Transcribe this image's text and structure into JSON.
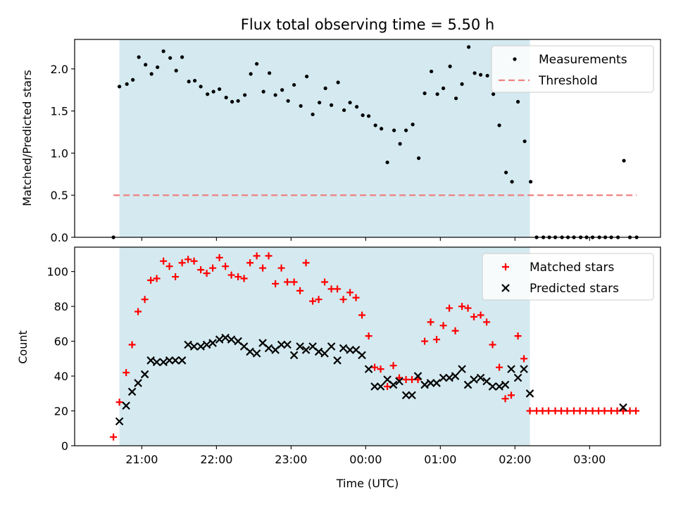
{
  "chart_data": [
    {
      "type": "scatter",
      "title": "Flux total observing time = 5.50 h",
      "xlabel": "",
      "ylabel": "Matched/Predicted stars",
      "ylim": [
        0,
        2.35
      ],
      "x_unit": "hours of time (UTC), values >= 24 are after midnight",
      "xlim": [
        20.1,
        27.95
      ],
      "xticks": [
        {
          "value": 21,
          "label": ""
        },
        {
          "value": 22,
          "label": ""
        },
        {
          "value": 23,
          "label": ""
        },
        {
          "value": 24,
          "label": ""
        },
        {
          "value": 25,
          "label": ""
        },
        {
          "value": 26,
          "label": ""
        },
        {
          "value": 27,
          "label": ""
        }
      ],
      "yticks": [
        {
          "value": 0,
          "label": "0.0"
        },
        {
          "value": 0.5,
          "label": "0.5"
        },
        {
          "value": 1,
          "label": "1.0"
        },
        {
          "value": 1.5,
          "label": "1.5"
        },
        {
          "value": 2,
          "label": "2.0"
        }
      ],
      "observing_window": {
        "start": 20.7,
        "end": 26.2,
        "color": "#d4eaf0"
      },
      "legend_position": "top-right",
      "series": [
        {
          "name": "Measurements",
          "marker": "dot",
          "color": "#000000",
          "points": [
            [
              20.62,
              0
            ],
            [
              20.7,
              1.79
            ],
            [
              20.8,
              1.82
            ],
            [
              20.88,
              1.87
            ],
            [
              20.96,
              2.14
            ],
            [
              21.05,
              2.05
            ],
            [
              21.13,
              1.94
            ],
            [
              21.21,
              2.02
            ],
            [
              21.29,
              2.21
            ],
            [
              21.38,
              2.13
            ],
            [
              21.46,
              1.98
            ],
            [
              21.54,
              2.14
            ],
            [
              21.63,
              1.85
            ],
            [
              21.71,
              1.86
            ],
            [
              21.79,
              1.79
            ],
            [
              21.88,
              1.7
            ],
            [
              21.96,
              1.73
            ],
            [
              22.04,
              1.76
            ],
            [
              22.13,
              1.66
            ],
            [
              22.21,
              1.61
            ],
            [
              22.29,
              1.62
            ],
            [
              22.38,
              1.69
            ],
            [
              22.46,
              1.94
            ],
            [
              22.54,
              2.06
            ],
            [
              22.63,
              1.73
            ],
            [
              22.71,
              1.95
            ],
            [
              22.79,
              1.69
            ],
            [
              22.88,
              1.75
            ],
            [
              22.96,
              1.62
            ],
            [
              23.04,
              1.81
            ],
            [
              23.13,
              1.56
            ],
            [
              23.21,
              1.91
            ],
            [
              23.29,
              1.46
            ],
            [
              23.38,
              1.6
            ],
            [
              23.46,
              1.77
            ],
            [
              23.54,
              1.57
            ],
            [
              23.63,
              1.84
            ],
            [
              23.71,
              1.51
            ],
            [
              23.79,
              1.6
            ],
            [
              23.88,
              1.55
            ],
            [
              23.96,
              1.45
            ],
            [
              24.04,
              1.44
            ],
            [
              24.13,
              1.33
            ],
            [
              24.21,
              1.29
            ],
            [
              24.29,
              0.89
            ],
            [
              24.38,
              1.27
            ],
            [
              24.46,
              1.11
            ],
            [
              24.54,
              1.27
            ],
            [
              24.63,
              1.34
            ],
            [
              24.71,
              0.94
            ],
            [
              24.79,
              1.71
            ],
            [
              24.88,
              1.97
            ],
            [
              24.96,
              1.7
            ],
            [
              25.04,
              1.77
            ],
            [
              25.13,
              2.03
            ],
            [
              25.21,
              1.65
            ],
            [
              25.29,
              1.82
            ],
            [
              25.38,
              2.26
            ],
            [
              25.46,
              1.95
            ],
            [
              25.54,
              1.93
            ],
            [
              25.63,
              1.92
            ],
            [
              25.71,
              1.7
            ],
            [
              25.79,
              1.33
            ],
            [
              25.88,
              0.77
            ],
            [
              25.96,
              0.66
            ],
            [
              26.04,
              1.61
            ],
            [
              26.13,
              1.14
            ],
            [
              26.21,
              0.66
            ],
            [
              26.29,
              0
            ],
            [
              26.38,
              0
            ],
            [
              26.46,
              0
            ],
            [
              26.54,
              0
            ],
            [
              26.63,
              0
            ],
            [
              26.71,
              0
            ],
            [
              26.79,
              0
            ],
            [
              26.88,
              0
            ],
            [
              26.96,
              0
            ],
            [
              27.04,
              0
            ],
            [
              27.13,
              0
            ],
            [
              27.21,
              0
            ],
            [
              27.29,
              0
            ],
            [
              27.38,
              0
            ],
            [
              27.46,
              0.91
            ],
            [
              27.54,
              0
            ],
            [
              27.63,
              0
            ]
          ]
        },
        {
          "name": "Threshold",
          "marker": "dashed-line",
          "color": "#f08080",
          "points": [
            [
              20.62,
              0.5
            ],
            [
              27.63,
              0.5
            ]
          ]
        }
      ]
    },
    {
      "type": "scatter",
      "title": "",
      "xlabel": "Time (UTC)",
      "ylabel": "Count",
      "ylim": [
        0,
        114
      ],
      "x_unit": "hours of time (UTC), values >= 24 are after midnight",
      "xlim": [
        20.1,
        27.95
      ],
      "xticks": [
        {
          "value": 21,
          "label": "21:00"
        },
        {
          "value": 22,
          "label": "22:00"
        },
        {
          "value": 23,
          "label": "23:00"
        },
        {
          "value": 24,
          "label": "00:00"
        },
        {
          "value": 25,
          "label": "01:00"
        },
        {
          "value": 26,
          "label": "02:00"
        },
        {
          "value": 27,
          "label": "03:00"
        }
      ],
      "yticks": [
        {
          "value": 0,
          "label": "0"
        },
        {
          "value": 20,
          "label": "20"
        },
        {
          "value": 40,
          "label": "40"
        },
        {
          "value": 60,
          "label": "60"
        },
        {
          "value": 80,
          "label": "80"
        },
        {
          "value": 100,
          "label": "100"
        }
      ],
      "observing_window": {
        "start": 20.7,
        "end": 26.2,
        "color": "#d4eaf0"
      },
      "legend_position": "top-right",
      "series": [
        {
          "name": "Matched stars",
          "marker": "plus",
          "color": "#ff0000",
          "points": [
            [
              20.62,
              5
            ],
            [
              20.7,
              25
            ],
            [
              20.79,
              42
            ],
            [
              20.87,
              58
            ],
            [
              20.95,
              77
            ],
            [
              21.04,
              84
            ],
            [
              21.12,
              95
            ],
            [
              21.2,
              96
            ],
            [
              21.29,
              106
            ],
            [
              21.37,
              103
            ],
            [
              21.45,
              97
            ],
            [
              21.54,
              105
            ],
            [
              21.62,
              107
            ],
            [
              21.7,
              106
            ],
            [
              21.79,
              101
            ],
            [
              21.87,
              99
            ],
            [
              21.95,
              102
            ],
            [
              22.04,
              108
            ],
            [
              22.12,
              103
            ],
            [
              22.2,
              98
            ],
            [
              22.29,
              97
            ],
            [
              22.37,
              96
            ],
            [
              22.45,
              105
            ],
            [
              22.54,
              109
            ],
            [
              22.62,
              102
            ],
            [
              22.7,
              109
            ],
            [
              22.79,
              93
            ],
            [
              22.87,
              102
            ],
            [
              22.95,
              94
            ],
            [
              23.04,
              94
            ],
            [
              23.12,
              89
            ],
            [
              23.2,
              105
            ],
            [
              23.29,
              83
            ],
            [
              23.37,
              84
            ],
            [
              23.45,
              94
            ],
            [
              23.54,
              90
            ],
            [
              23.62,
              90
            ],
            [
              23.7,
              84
            ],
            [
              23.79,
              88
            ],
            [
              23.87,
              85
            ],
            [
              23.95,
              75
            ],
            [
              24.04,
              63
            ],
            [
              24.12,
              45
            ],
            [
              24.2,
              44
            ],
            [
              24.29,
              34
            ],
            [
              24.37,
              46
            ],
            [
              24.45,
              39
            ],
            [
              24.54,
              38
            ],
            [
              24.62,
              38
            ],
            [
              24.7,
              38
            ],
            [
              24.79,
              60
            ],
            [
              24.87,
              71
            ],
            [
              24.95,
              61
            ],
            [
              25.04,
              69
            ],
            [
              25.12,
              79
            ],
            [
              25.2,
              66
            ],
            [
              25.29,
              80
            ],
            [
              25.37,
              79
            ],
            [
              25.45,
              74
            ],
            [
              25.54,
              75
            ],
            [
              25.62,
              71
            ],
            [
              25.7,
              58
            ],
            [
              25.79,
              45
            ],
            [
              25.87,
              27
            ],
            [
              25.95,
              29
            ],
            [
              26.04,
              63
            ],
            [
              26.12,
              50
            ],
            [
              26.2,
              20
            ],
            [
              26.29,
              20
            ],
            [
              26.37,
              20
            ],
            [
              26.45,
              20
            ],
            [
              26.54,
              20
            ],
            [
              26.62,
              20
            ],
            [
              26.7,
              20
            ],
            [
              26.79,
              20
            ],
            [
              26.87,
              20
            ],
            [
              26.95,
              20
            ],
            [
              27.04,
              20
            ],
            [
              27.12,
              20
            ],
            [
              27.2,
              20
            ],
            [
              27.29,
              20
            ],
            [
              27.37,
              20
            ],
            [
              27.45,
              20
            ],
            [
              27.54,
              20
            ],
            [
              27.62,
              20
            ]
          ]
        },
        {
          "name": "Predicted stars",
          "marker": "x",
          "color": "#000000",
          "points": [
            [
              20.7,
              14
            ],
            [
              20.79,
              23
            ],
            [
              20.87,
              31
            ],
            [
              20.95,
              36
            ],
            [
              21.04,
              41
            ],
            [
              21.12,
              49
            ],
            [
              21.2,
              48
            ],
            [
              21.29,
              48
            ],
            [
              21.37,
              49
            ],
            [
              21.45,
              49
            ],
            [
              21.54,
              49
            ],
            [
              21.62,
              58
            ],
            [
              21.7,
              57
            ],
            [
              21.79,
              57
            ],
            [
              21.87,
              58
            ],
            [
              21.95,
              59
            ],
            [
              22.04,
              61
            ],
            [
              22.12,
              62
            ],
            [
              22.2,
              61
            ],
            [
              22.29,
              60
            ],
            [
              22.37,
              57
            ],
            [
              22.45,
              54
            ],
            [
              22.54,
              53
            ],
            [
              22.62,
              59
            ],
            [
              22.7,
              56
            ],
            [
              22.79,
              55
            ],
            [
              22.87,
              58
            ],
            [
              22.95,
              58
            ],
            [
              23.04,
              52
            ],
            [
              23.12,
              57
            ],
            [
              23.2,
              55
            ],
            [
              23.29,
              57
            ],
            [
              23.37,
              54
            ],
            [
              23.45,
              53
            ],
            [
              23.54,
              57
            ],
            [
              23.62,
              49
            ],
            [
              23.7,
              56
            ],
            [
              23.79,
              55
            ],
            [
              23.87,
              55
            ],
            [
              23.95,
              52
            ],
            [
              24.04,
              44
            ],
            [
              24.12,
              34
            ],
            [
              24.2,
              34
            ],
            [
              24.29,
              38
            ],
            [
              24.37,
              35
            ],
            [
              24.45,
              37
            ],
            [
              24.54,
              29
            ],
            [
              24.62,
              29
            ],
            [
              24.7,
              40
            ],
            [
              24.79,
              35
            ],
            [
              24.87,
              36
            ],
            [
              24.95,
              36
            ],
            [
              25.04,
              39
            ],
            [
              25.12,
              39
            ],
            [
              25.2,
              40
            ],
            [
              25.29,
              44
            ],
            [
              25.37,
              35
            ],
            [
              25.45,
              38
            ],
            [
              25.54,
              39
            ],
            [
              25.62,
              37
            ],
            [
              25.7,
              34
            ],
            [
              25.79,
              34
            ],
            [
              25.87,
              35
            ],
            [
              25.95,
              44
            ],
            [
              26.04,
              39
            ],
            [
              26.12,
              44
            ],
            [
              26.2,
              30
            ],
            [
              27.45,
              22
            ]
          ]
        }
      ]
    }
  ]
}
